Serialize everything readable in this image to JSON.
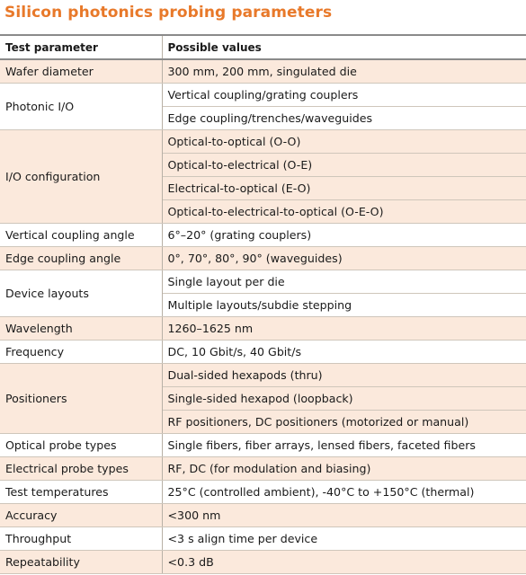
{
  "title": "Silicon photonics probing parameters",
  "header": {
    "param": "Test parameter",
    "values": "Possible values"
  },
  "rows": [
    {
      "param": "Wafer diameter",
      "values": [
        "300 mm, 200 mm, singulated die"
      ],
      "shaded": true
    },
    {
      "param": "Photonic I/O",
      "values": [
        "Vertical coupling/grating couplers",
        "Edge coupling/trenches/waveguides"
      ],
      "shaded": false
    },
    {
      "param": "I/O configuration",
      "values": [
        "Optical-to-optical (O-O)",
        "Optical-to-electrical (O-E)",
        "Electrical-to-optical (E-O)",
        "Optical-to-electrical-to-optical (O-E-O)"
      ],
      "shaded": true
    },
    {
      "param": "Vertical coupling angle",
      "values": [
        "6°–20° (grating couplers)"
      ],
      "shaded": false
    },
    {
      "param": "Edge coupling angle",
      "values": [
        "0°, 70°, 80°, 90° (waveguides)"
      ],
      "shaded": true
    },
    {
      "param": "Device layouts",
      "values": [
        "Single layout per die",
        "Multiple layouts/subdie stepping"
      ],
      "shaded": false
    },
    {
      "param": "Wavelength",
      "values": [
        "1260–1625 nm"
      ],
      "shaded": true
    },
    {
      "param": "Frequency",
      "values": [
        "DC, 10 Gbit/s, 40 Gbit/s"
      ],
      "shaded": false
    },
    {
      "param": "Positioners",
      "values": [
        "Dual-sided hexapods (thru)",
        "Single-sided hexapod (loopback)",
        "RF positioners, DC positioners (motorized or manual)"
      ],
      "shaded": true
    },
    {
      "param": "Optical probe types",
      "values": [
        "Single fibers, fiber arrays, lensed fibers, faceted fibers"
      ],
      "shaded": false
    },
    {
      "param": "Electrical probe types",
      "values": [
        "RF, DC (for modulation and biasing)"
      ],
      "shaded": true
    },
    {
      "param": "Test temperatures",
      "values": [
        "25°C (controlled ambient),  -40°C to +150°C (thermal)"
      ],
      "shaded": false
    },
    {
      "param": "Accuracy",
      "values": [
        "<300 nm"
      ],
      "shaded": true
    },
    {
      "param": "Throughput",
      "values": [
        "<3 s align time per device"
      ],
      "shaded": false
    },
    {
      "param": "Repeatability",
      "values": [
        "<0.3 dB"
      ],
      "shaded": true
    }
  ],
  "colors": {
    "title": "#e8792a",
    "shade": "#fbe9dc",
    "rule": "#cfc6bb"
  }
}
